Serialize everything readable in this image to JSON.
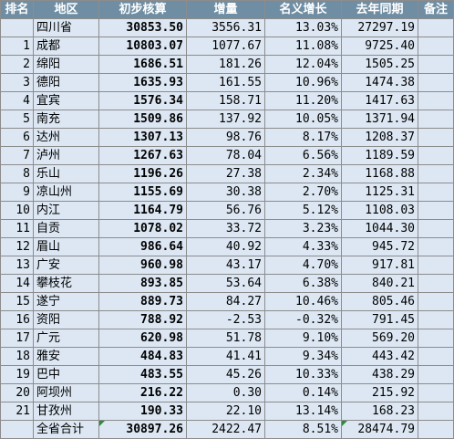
{
  "headers": [
    "排名",
    "地区",
    "初步核算",
    "增量",
    "名义增长",
    "去年同期",
    "备注"
  ],
  "rows": [
    {
      "rank": "",
      "region": "四川省",
      "gdp": "30853.50",
      "increment": "3556.31",
      "growth": "13.03%",
      "last_year": "27297.19",
      "note": ""
    },
    {
      "rank": "1",
      "region": "成都",
      "gdp": "10803.07",
      "increment": "1077.67",
      "growth": "11.08%",
      "last_year": "9725.40",
      "note": ""
    },
    {
      "rank": "2",
      "region": "绵阳",
      "gdp": "1686.51",
      "increment": "181.26",
      "growth": "12.04%",
      "last_year": "1505.25",
      "note": ""
    },
    {
      "rank": "3",
      "region": "德阳",
      "gdp": "1635.93",
      "increment": "161.55",
      "growth": "10.96%",
      "last_year": "1474.38",
      "note": ""
    },
    {
      "rank": "4",
      "region": "宜宾",
      "gdp": "1576.34",
      "increment": "158.71",
      "growth": "11.20%",
      "last_year": "1417.63",
      "note": ""
    },
    {
      "rank": "5",
      "region": "南充",
      "gdp": "1509.86",
      "increment": "137.92",
      "growth": "10.05%",
      "last_year": "1371.94",
      "note": ""
    },
    {
      "rank": "6",
      "region": "达州",
      "gdp": "1307.13",
      "increment": "98.76",
      "growth": "8.17%",
      "last_year": "1208.37",
      "note": ""
    },
    {
      "rank": "7",
      "region": "泸州",
      "gdp": "1267.63",
      "increment": "78.04",
      "growth": "6.56%",
      "last_year": "1189.59",
      "note": ""
    },
    {
      "rank": "8",
      "region": "乐山",
      "gdp": "1196.26",
      "increment": "27.38",
      "growth": "2.34%",
      "last_year": "1168.88",
      "note": ""
    },
    {
      "rank": "9",
      "region": "凉山州",
      "gdp": "1155.69",
      "increment": "30.38",
      "growth": "2.70%",
      "last_year": "1125.31",
      "note": ""
    },
    {
      "rank": "10",
      "region": "内江",
      "gdp": "1164.79",
      "increment": "56.76",
      "growth": "5.12%",
      "last_year": "1108.03",
      "note": ""
    },
    {
      "rank": "11",
      "region": "自贡",
      "gdp": "1078.02",
      "increment": "33.72",
      "growth": "3.23%",
      "last_year": "1044.30",
      "note": ""
    },
    {
      "rank": "12",
      "region": "眉山",
      "gdp": "986.64",
      "increment": "40.92",
      "growth": "4.33%",
      "last_year": "945.72",
      "note": ""
    },
    {
      "rank": "13",
      "region": "广安",
      "gdp": "960.98",
      "increment": "43.17",
      "growth": "4.70%",
      "last_year": "917.81",
      "note": ""
    },
    {
      "rank": "14",
      "region": "攀枝花",
      "gdp": "893.85",
      "increment": "53.64",
      "growth": "6.38%",
      "last_year": "840.21",
      "note": ""
    },
    {
      "rank": "15",
      "region": "遂宁",
      "gdp": "889.73",
      "increment": "84.27",
      "growth": "10.46%",
      "last_year": "805.46",
      "note": ""
    },
    {
      "rank": "16",
      "region": "资阳",
      "gdp": "788.92",
      "increment": "-2.53",
      "growth": "-0.32%",
      "last_year": "791.45",
      "note": ""
    },
    {
      "rank": "17",
      "region": "广元",
      "gdp": "620.98",
      "increment": "51.78",
      "growth": "9.10%",
      "last_year": "569.20",
      "note": ""
    },
    {
      "rank": "18",
      "region": "雅安",
      "gdp": "484.83",
      "increment": "41.41",
      "growth": "9.34%",
      "last_year": "443.42",
      "note": ""
    },
    {
      "rank": "19",
      "region": "巴中",
      "gdp": "483.55",
      "increment": "45.26",
      "growth": "10.33%",
      "last_year": "438.29",
      "note": ""
    },
    {
      "rank": "20",
      "region": "阿坝州",
      "gdp": "216.22",
      "increment": "0.30",
      "growth": "0.14%",
      "last_year": "215.92",
      "note": ""
    },
    {
      "rank": "21",
      "region": "甘孜州",
      "gdp": "190.33",
      "increment": "22.10",
      "growth": "13.14%",
      "last_year": "168.23",
      "note": ""
    },
    {
      "rank": "",
      "region": "全省合计",
      "gdp": "30897.26",
      "increment": "2422.47",
      "growth": "8.51%",
      "last_year": "28474.79",
      "note": ""
    }
  ],
  "colors": {
    "header_bg": "#6f8ea4",
    "header_text": "#ffffff",
    "row_bg": "#dce7f3",
    "grid": "#8c8c8c",
    "error_marker": "#2e8b3a"
  }
}
